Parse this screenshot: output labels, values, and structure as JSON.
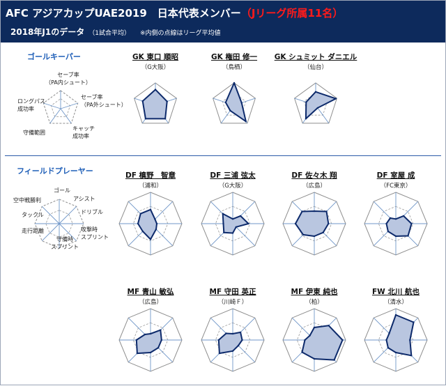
{
  "header": {
    "title": "AFC アジアカップUAE2019　日本代表メンバー",
    "title_highlight": "（Jリーグ所属11名）",
    "subtitle": "2018年J1のデータ",
    "subtitle_small": "（1試合平均）",
    "note": "※内側の点線はリーグ平均値"
  },
  "colors": {
    "header_bg": "#0d2a5c",
    "section_title": "#1f5fb8",
    "highlight": "#ff1a1a",
    "series_fill": "#b9c6e0",
    "series_stroke": "#0d2a6b",
    "axis": "#6f96c8",
    "avg_line": "#999999"
  },
  "sections": {
    "gk": {
      "title": "ゴールキーパー",
      "axes": [
        "セーブ率\n（PA内シュート）",
        "セーブ率\n（PA外シュート）",
        "キャッチ\n成功率",
        "守備範囲",
        "ロングパス\n成功率"
      ]
    },
    "fp": {
      "title": "フィールドプレーヤー",
      "axes": [
        "ゴール",
        "アシスト",
        "ドリブル",
        "攻撃時\nスプリント",
        "守備時\nスプリント",
        "走行距離",
        "タックル",
        "空中戦勝利"
      ]
    }
  },
  "chart_data": [
    {
      "type": "radar",
      "name": "GK 東口 順昭",
      "club": "（G大阪）",
      "axes": [
        "セーブ率（PA内シュート）",
        "セーブ率（PA外シュート）",
        "キャッチ成功率",
        "守備範囲",
        "ロングパス成功率"
      ],
      "values": [
        0.7,
        0.55,
        0.75,
        0.75,
        0.6
      ]
    },
    {
      "type": "radar",
      "name": "GK 権田 修一",
      "club": "（鳥栖）",
      "axes": [
        "セーブ率（PA内シュート）",
        "セーブ率（PA外シュート）",
        "キャッチ成功率",
        "守備範囲",
        "ロングパス成功率"
      ],
      "values": [
        1.0,
        0.35,
        0.9,
        0.3,
        0.4
      ]
    },
    {
      "type": "radar",
      "name": "GK シュミット ダニエル",
      "club": "（仙台）",
      "axes": [
        "セーブ率（PA内シュート）",
        "セーブ率（PA外シュート）",
        "キャッチ成功率",
        "守備範囲",
        "ロングパス成功率"
      ],
      "values": [
        0.6,
        0.95,
        0.15,
        0.75,
        0.45
      ]
    },
    {
      "type": "radar",
      "name": "DF 槙野　智章",
      "club": "（浦和）",
      "axes": [
        "ゴール",
        "アシスト",
        "ドリブル",
        "攻撃時スプリント",
        "守備時スプリント",
        "走行距離",
        "タックル",
        "空中戦勝利"
      ],
      "values": [
        0.45,
        0.2,
        0.2,
        0.25,
        0.5,
        0.35,
        0.4,
        0.45
      ]
    },
    {
      "type": "radar",
      "name": "DF 三浦 弦太",
      "club": "（G大阪）",
      "axes": [
        "ゴール",
        "アシスト",
        "ドリブル",
        "攻撃時スプリント",
        "守備時スプリント",
        "走行距離",
        "タックル",
        "空中戦勝利"
      ],
      "values": [
        0.15,
        0.35,
        0.5,
        0.15,
        0.3,
        0.4,
        0.3,
        0.45
      ]
    },
    {
      "type": "radar",
      "name": "DF 佐々木 翔",
      "club": "（広島）",
      "axes": [
        "ゴール",
        "アシスト",
        "ドリブル",
        "攻撃時スプリント",
        "守備時スプリント",
        "走行距離",
        "タックル",
        "空中戦勝利"
      ],
      "values": [
        0.4,
        0.55,
        0.45,
        0.4,
        0.4,
        0.5,
        0.6,
        0.55
      ]
    },
    {
      "type": "radar",
      "name": "DF 室屋 成",
      "club": "（FC東京）",
      "axes": [
        "ゴール",
        "アシスト",
        "ドリブル",
        "攻撃時スプリント",
        "守備時スプリント",
        "走行距離",
        "タックル",
        "空中戦勝利"
      ],
      "values": [
        0.15,
        0.35,
        0.5,
        0.55,
        0.4,
        0.35,
        0.3,
        0.25
      ]
    },
    {
      "type": "radar",
      "name": "MF 青山 敏弘",
      "club": "（広島）",
      "axes": [
        "ゴール",
        "アシスト",
        "ドリブル",
        "攻撃時スプリント",
        "守備時スプリント",
        "走行距離",
        "タックル",
        "空中戦勝利"
      ],
      "values": [
        0.2,
        0.45,
        0.35,
        0.35,
        0.4,
        0.6,
        0.45,
        0.25
      ]
    },
    {
      "type": "radar",
      "name": "MF 守田 英正",
      "club": "（川崎Ｆ）",
      "axes": [
        "ゴール",
        "アシスト",
        "ドリブル",
        "攻撃時スプリント",
        "守備時スプリント",
        "走行距離",
        "タックル",
        "空中戦勝利"
      ],
      "values": [
        0.2,
        0.35,
        0.3,
        0.25,
        0.35,
        0.6,
        0.45,
        0.3
      ]
    },
    {
      "type": "radar",
      "name": "MF 伊東 純也",
      "club": "（柏）",
      "axes": [
        "ゴール",
        "アシスト",
        "ドリブル",
        "攻撃時スプリント",
        "守備時スプリント",
        "走行距離",
        "タックル",
        "空中戦勝利"
      ],
      "values": [
        0.4,
        0.65,
        0.9,
        0.9,
        0.6,
        0.55,
        0.3,
        0.2
      ]
    },
    {
      "type": "radar",
      "name": "FW 北川 航也",
      "club": "（清水）",
      "axes": [
        "ゴール",
        "アシスト",
        "ドリブル",
        "攻撃時スプリント",
        "守備時スプリント",
        "走行距離",
        "タックル",
        "空中戦勝利"
      ],
      "values": [
        0.8,
        0.8,
        0.45,
        0.7,
        0.4,
        0.35,
        0.3,
        0.3
      ]
    }
  ]
}
